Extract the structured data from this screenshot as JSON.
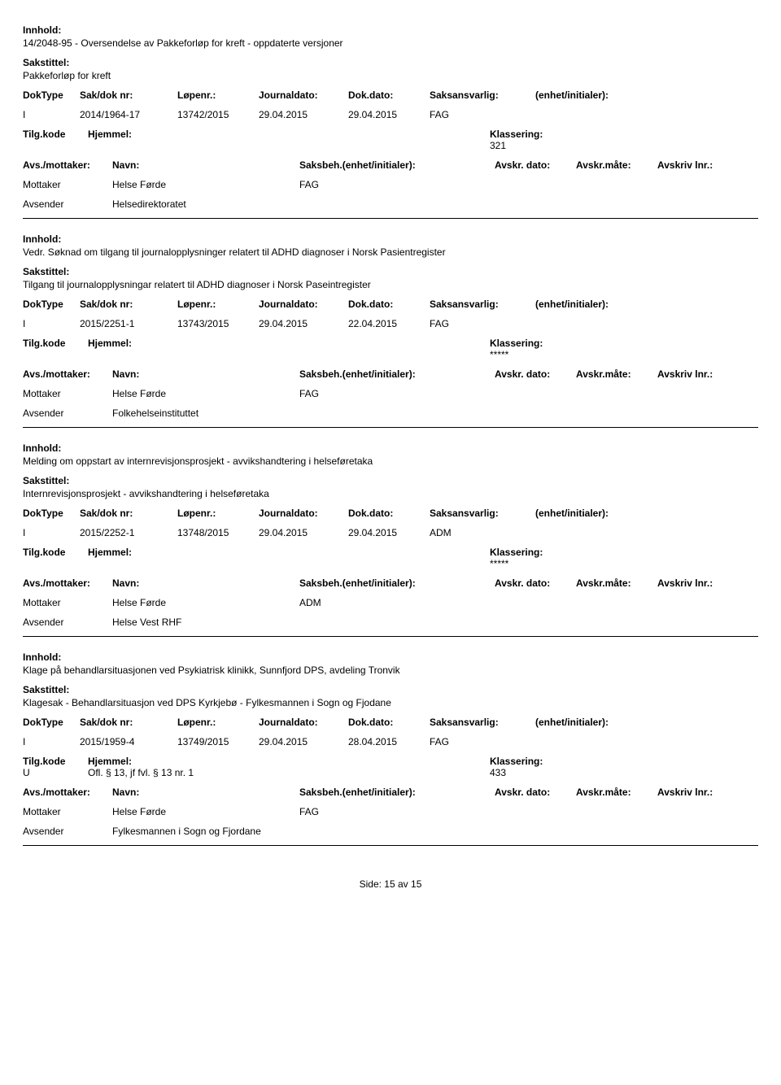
{
  "labels": {
    "innhold": "Innhold:",
    "sakstittel": "Sakstittel:",
    "doktype": "DokType",
    "sakdoknr": "Sak/dok nr:",
    "lopenr": "Løpenr.:",
    "journaldato": "Journaldato:",
    "dokdato": "Dok.dato:",
    "saksansvarlig": "Saksansvarlig:",
    "enhet_initialer": "(enhet/initialer):",
    "tilgkode": "Tilg.kode",
    "hjemmel": "Hjemmel:",
    "klassering": "Klassering:",
    "avsmottaker": "Avs./mottaker:",
    "navn": "Navn:",
    "saksbeh": "Saksbeh.(enhet/initialer):",
    "avskrdato": "Avskr. dato:",
    "avskrmate": "Avskr.måte:",
    "avskrivlnr": "Avskriv lnr.:",
    "mottaker": "Mottaker",
    "avsender": "Avsender"
  },
  "records": [
    {
      "innhold": "14/2048-95 - Oversendelse av Pakkeforløp for kreft - oppdaterte versjoner",
      "sakstittel": "Pakkeforløp for kreft",
      "doktype": "I",
      "sakdoknr": "2014/1964-17",
      "lopenr": "13742/2015",
      "journaldato": "29.04.2015",
      "dokdato": "29.04.2015",
      "saksansvarlig": "FAG",
      "enhet": "",
      "tilgkode": "",
      "hjemmel": "",
      "klassering": "321",
      "mottaker_navn": "Helse Førde",
      "mottaker_saksbeh": "FAG",
      "avsender_navn": "Helsedirektoratet"
    },
    {
      "innhold": "Vedr. Søknad om tilgang til journalopplysninger relatert til ADHD diagnoser i Norsk Pasientregister",
      "sakstittel": "Tilgang til journalopplysningar relatert til ADHD diagnoser i Norsk Paseintregister",
      "doktype": "I",
      "sakdoknr": "2015/2251-1",
      "lopenr": "13743/2015",
      "journaldato": "29.04.2015",
      "dokdato": "22.04.2015",
      "saksansvarlig": "FAG",
      "enhet": "",
      "tilgkode": "",
      "hjemmel": "",
      "klassering": "*****",
      "mottaker_navn": "Helse Førde",
      "mottaker_saksbeh": "FAG",
      "avsender_navn": "Folkehelseinstituttet"
    },
    {
      "innhold": "Melding om oppstart av internrevisjonsprosjekt - avvikshandtering i helseføretaka",
      "sakstittel": "Internrevisjonsprosjekt - avvikshandtering i helseføretaka",
      "doktype": "I",
      "sakdoknr": "2015/2252-1",
      "lopenr": "13748/2015",
      "journaldato": "29.04.2015",
      "dokdato": "29.04.2015",
      "saksansvarlig": "ADM",
      "enhet": "",
      "tilgkode": "",
      "hjemmel": "",
      "klassering": "*****",
      "mottaker_navn": "Helse Førde",
      "mottaker_saksbeh": "ADM",
      "avsender_navn": "Helse Vest RHF"
    },
    {
      "innhold": "Klage på behandlarsituasjonen ved Psykiatrisk klinikk, Sunnfjord DPS, avdeling Tronvik",
      "sakstittel": "Klagesak - Behandlarsituasjon ved DPS Kyrkjebø - Fylkesmannen i Sogn og Fjodane",
      "doktype": "I",
      "sakdoknr": "2015/1959-4",
      "lopenr": "13749/2015",
      "journaldato": "29.04.2015",
      "dokdato": "28.04.2015",
      "saksansvarlig": "FAG",
      "enhet": "",
      "tilgkode": "U",
      "hjemmel": "Ofl. § 13, jf fvl. § 13 nr. 1",
      "klassering": "433",
      "mottaker_navn": "Helse Førde",
      "mottaker_saksbeh": "FAG",
      "avsender_navn": "Fylkesmannen i Sogn og Fjordane"
    }
  ],
  "footer": {
    "side_label": "Side:",
    "page": "15",
    "av": "av",
    "total": "15"
  }
}
